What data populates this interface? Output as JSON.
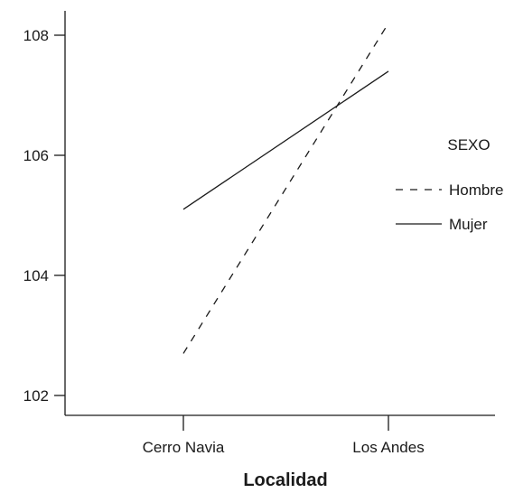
{
  "chart_data": {
    "type": "line",
    "xlabel": "Localidad",
    "ylabel": "",
    "categories": [
      "Cerro Navia",
      "Los Andes"
    ],
    "yticks": [
      "102",
      "104",
      "106",
      "108"
    ],
    "ylim": [
      101.9,
      109.0
    ],
    "grid": false,
    "legend": {
      "title": "SEXO",
      "placement": "right"
    },
    "series": [
      {
        "name": "Hombre",
        "style": "dashed",
        "values": [
          102.7,
          108.2
        ]
      },
      {
        "name": "Mujer",
        "style": "solid",
        "values": [
          105.1,
          107.4
        ]
      }
    ]
  }
}
